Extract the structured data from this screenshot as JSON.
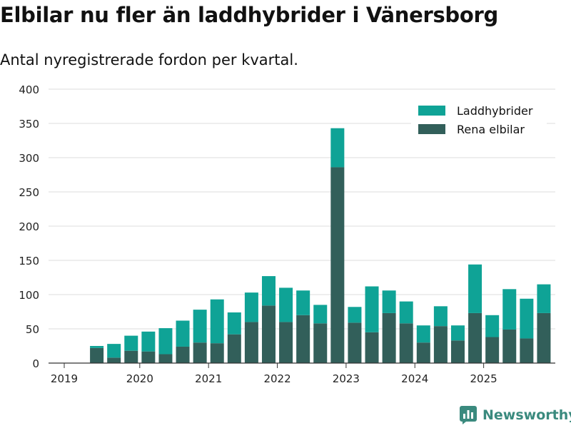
{
  "header": {
    "title": "Elbilar nu fler än laddhybrider i Vänersborg",
    "subtitle": "Antal nyregistrerade fordon per kvartal."
  },
  "legend": {
    "phev_label": "Laddhybrider",
    "bev_label": "Rena elbilar"
  },
  "brand": {
    "name": "Newsworthy",
    "icon": "bar-chart-logo-icon"
  },
  "colors": {
    "phev": "#0fa396",
    "bev": "#325f5a",
    "grid": "#dddddd",
    "axis": "#333333",
    "text": "#222222"
  },
  "chart_data": {
    "type": "bar",
    "stacked": true,
    "title": "Elbilar nu fler än laddhybrider i Vänersborg",
    "subtitle": "Antal nyregistrerade fordon per kvartal.",
    "xlabel": "",
    "ylabel": "",
    "ylim": [
      0,
      400
    ],
    "yticks": [
      0,
      50,
      100,
      150,
      200,
      250,
      300,
      350,
      400
    ],
    "grid": true,
    "legend_position": "top-right",
    "categories": [
      "2019 Q1",
      "2019 Q2",
      "2019 Q3",
      "2019 Q4",
      "2020 Q1",
      "2020 Q2",
      "2020 Q3",
      "2020 Q4",
      "2021 Q1",
      "2021 Q2",
      "2021 Q3",
      "2021 Q4",
      "2022 Q1",
      "2022 Q2",
      "2022 Q3",
      "2022 Q4",
      "2023 Q1",
      "2023 Q2",
      "2023 Q3",
      "2023 Q4",
      "2024 Q1",
      "2024 Q2",
      "2024 Q3",
      "2024 Q4",
      "2025 Q1",
      "2025 Q2",
      "2025 Q3",
      "2025 Q4"
    ],
    "x_tick_labels": [
      "2019",
      "2020",
      "2021",
      "2022",
      "2023",
      "2024",
      "2025"
    ],
    "series": [
      {
        "name": "Rena elbilar",
        "values": [
          0,
          22,
          8,
          18,
          17,
          13,
          24,
          30,
          29,
          42,
          60,
          84,
          60,
          70,
          58,
          286,
          59,
          45,
          73,
          58,
          30,
          54,
          33,
          73,
          38,
          49,
          36,
          73
        ]
      },
      {
        "name": "Laddhybrider",
        "values": [
          0,
          3,
          20,
          22,
          29,
          38,
          38,
          48,
          64,
          32,
          43,
          43,
          50,
          36,
          27,
          57,
          23,
          67,
          33,
          32,
          25,
          29,
          22,
          71,
          32,
          59,
          58,
          42
        ]
      }
    ]
  }
}
